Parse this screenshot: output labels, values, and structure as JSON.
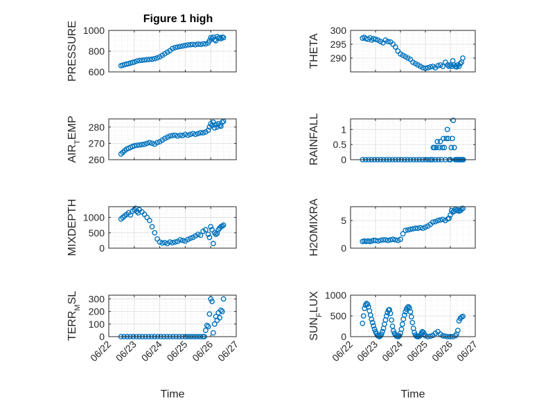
{
  "figure_title": "Figure 1 high",
  "marker_color": "#0072BD",
  "xlabel": "Time",
  "x_tick_labels": [
    "06/22",
    "06/23",
    "06/24",
    "06/25",
    "06/26",
    "06/27"
  ],
  "chart_data": [
    {
      "type": "scatter",
      "title": "Figure 1 high",
      "ylabel": "PRESSURE",
      "xlabel": "",
      "ylim": [
        600,
        1000
      ],
      "yticks": [
        600,
        800,
        1000
      ],
      "xlim": [
        0,
        5
      ],
      "grid": "on, with minor grid",
      "series": [
        {
          "name": "",
          "x": [
            0.48,
            0.55,
            0.62,
            0.7,
            0.78,
            0.85,
            0.92,
            1.0,
            1.1,
            1.2,
            1.3,
            1.4,
            1.5,
            1.6,
            1.7,
            1.8,
            1.9,
            2.0,
            2.1,
            2.2,
            2.3,
            2.4,
            2.5,
            2.6,
            2.7,
            2.8,
            2.9,
            3.0,
            3.1,
            3.2,
            3.3,
            3.4,
            3.5,
            3.6,
            3.7,
            3.8,
            3.9,
            3.95,
            4.0,
            4.05,
            4.1,
            4.15,
            4.2,
            4.25,
            4.3,
            4.35,
            4.4,
            4.45,
            4.5
          ],
          "y": [
            660,
            665,
            670,
            675,
            680,
            685,
            690,
            695,
            705,
            710,
            712,
            715,
            718,
            720,
            722,
            728,
            735,
            745,
            760,
            775,
            790,
            805,
            825,
            835,
            840,
            845,
            850,
            855,
            860,
            862,
            865,
            862,
            868,
            865,
            870,
            870,
            880,
            900,
            930,
            920,
            935,
            910,
            900,
            940,
            925,
            930,
            920,
            935,
            930
          ]
        }
      ]
    },
    {
      "type": "scatter",
      "ylabel": "THETA",
      "xlabel": "",
      "ylim": [
        285,
        300
      ],
      "yticks": [
        290,
        295,
        300
      ],
      "xlim": [
        0,
        5
      ],
      "grid": "on, with minor grid",
      "series": [
        {
          "name": "",
          "x": [
            0.48,
            0.55,
            0.62,
            0.7,
            0.78,
            0.85,
            0.92,
            1.0,
            1.1,
            1.2,
            1.3,
            1.4,
            1.5,
            1.6,
            1.7,
            1.8,
            1.9,
            2.0,
            2.1,
            2.2,
            2.3,
            2.4,
            2.5,
            2.6,
            2.7,
            2.8,
            2.9,
            3.0,
            3.1,
            3.2,
            3.3,
            3.4,
            3.5,
            3.6,
            3.7,
            3.8,
            3.9,
            3.95,
            4.0,
            4.05,
            4.1,
            4.15,
            4.2,
            4.25,
            4.3,
            4.35,
            4.4,
            4.45,
            4.5
          ],
          "y": [
            297.2,
            297.5,
            297.0,
            296.8,
            297.3,
            296.5,
            297.0,
            296.8,
            296.5,
            296.0,
            295.5,
            296.5,
            296.0,
            295.8,
            295.0,
            294.0,
            292.5,
            291.5,
            291.0,
            290.5,
            290.0,
            289.5,
            288.5,
            288.0,
            287.5,
            287.0,
            286.5,
            286.3,
            286.5,
            286.8,
            287.0,
            286.5,
            287.2,
            287.5,
            287.0,
            288.5,
            287.5,
            287.0,
            287.5,
            287.0,
            289.0,
            287.5,
            287.0,
            286.8,
            287.5,
            287.0,
            288.0,
            288.5,
            290.0
          ]
        }
      ]
    },
    {
      "type": "scatter",
      "ylabel": "AIR_TEMP",
      "xlabel": "",
      "ylim": [
        260,
        285
      ],
      "yticks": [
        260,
        270,
        280
      ],
      "xlim": [
        0,
        5
      ],
      "grid": "on, with minor grid",
      "series": [
        {
          "name": "",
          "x": [
            0.48,
            0.55,
            0.62,
            0.7,
            0.78,
            0.85,
            0.92,
            1.0,
            1.1,
            1.2,
            1.3,
            1.4,
            1.5,
            1.6,
            1.7,
            1.8,
            1.9,
            2.0,
            2.1,
            2.2,
            2.3,
            2.4,
            2.5,
            2.6,
            2.7,
            2.8,
            2.9,
            3.0,
            3.1,
            3.2,
            3.3,
            3.4,
            3.5,
            3.6,
            3.7,
            3.8,
            3.9,
            3.95,
            4.0,
            4.05,
            4.1,
            4.15,
            4.2,
            4.25,
            4.3,
            4.35,
            4.4,
            4.45,
            4.5
          ],
          "y": [
            263.5,
            264.5,
            265.5,
            266.5,
            267.0,
            267.5,
            268.0,
            268.5,
            268.8,
            269.0,
            269.2,
            269.5,
            270.0,
            270.5,
            270.0,
            269.5,
            270.5,
            271.0,
            272.0,
            273.0,
            273.8,
            274.5,
            274.8,
            275.0,
            274.5,
            275.0,
            274.8,
            275.5,
            275.0,
            275.5,
            276.0,
            275.5,
            276.0,
            276.5,
            276.5,
            277.0,
            278.0,
            280.0,
            282.0,
            281.0,
            283.0,
            279.5,
            281.5,
            280.0,
            282.0,
            281.0,
            280.5,
            283.0,
            283.5
          ]
        }
      ]
    },
    {
      "type": "scatter",
      "ylabel": "RAINFALL",
      "xlabel": "",
      "ylim": [
        0,
        1.35
      ],
      "yticks": [
        0,
        0.5,
        1
      ],
      "xlim": [
        0,
        5
      ],
      "grid": "on, with minor grid",
      "series": [
        {
          "name": "",
          "x": [
            0.48,
            0.6,
            0.72,
            0.84,
            0.96,
            1.08,
            1.2,
            1.32,
            1.44,
            1.56,
            1.68,
            1.8,
            1.92,
            2.04,
            2.16,
            2.28,
            2.4,
            2.52,
            2.64,
            2.76,
            2.88,
            3.0,
            3.1,
            3.2,
            3.28,
            3.32,
            3.36,
            3.4,
            3.44,
            3.48,
            3.52,
            3.56,
            3.6,
            3.64,
            3.68,
            3.72,
            3.76,
            3.8,
            3.84,
            3.88,
            3.92,
            3.96,
            4.0,
            4.04,
            4.08,
            4.12,
            4.16,
            4.2,
            4.24,
            4.28,
            4.32,
            4.36,
            4.4,
            4.44,
            4.48,
            4.52
          ],
          "y": [
            0,
            0,
            0,
            0,
            0,
            0,
            0,
            0,
            0,
            0,
            0,
            0,
            0,
            0,
            0,
            0,
            0,
            0,
            0,
            0,
            0,
            0,
            0,
            0,
            0,
            0.4,
            0.4,
            0,
            0.4,
            0.6,
            0,
            0.4,
            0.6,
            0,
            0.4,
            0.7,
            0.4,
            0,
            0.7,
            1.0,
            0.7,
            0,
            0,
            0.4,
            0.7,
            1.3,
            0.4,
            0,
            0,
            0,
            0,
            0,
            0,
            0,
            0,
            0
          ]
        }
      ]
    },
    {
      "type": "scatter",
      "ylabel": "MIXDEPTH",
      "xlabel": "",
      "ylim": [
        0,
        1350
      ],
      "yticks": [
        0,
        500,
        1000
      ],
      "xlim": [
        0,
        5
      ],
      "grid": "on, with minor grid",
      "series": [
        {
          "name": "",
          "x": [
            0.48,
            0.55,
            0.62,
            0.7,
            0.78,
            0.85,
            0.92,
            1.0,
            1.05,
            1.1,
            1.15,
            1.2,
            1.3,
            1.4,
            1.5,
            1.6,
            1.7,
            1.8,
            1.9,
            2.0,
            2.1,
            2.2,
            2.3,
            2.4,
            2.5,
            2.6,
            2.7,
            2.8,
            2.9,
            3.0,
            3.1,
            3.2,
            3.3,
            3.4,
            3.5,
            3.6,
            3.7,
            3.8,
            3.9,
            3.95,
            4.0,
            4.05,
            4.1,
            4.15,
            4.2,
            4.25,
            4.3,
            4.35,
            4.4,
            4.45,
            4.5
          ],
          "y": [
            950,
            1000,
            1050,
            1100,
            1150,
            1080,
            1200,
            1250,
            1300,
            1200,
            1150,
            1250,
            1180,
            1100,
            1000,
            900,
            700,
            500,
            300,
            200,
            170,
            180,
            150,
            200,
            180,
            200,
            220,
            270,
            250,
            230,
            280,
            320,
            350,
            400,
            450,
            420,
            550,
            600,
            450,
            350,
            700,
            600,
            150,
            500,
            450,
            480,
            600,
            650,
            700,
            720,
            750
          ]
        }
      ]
    },
    {
      "type": "scatter",
      "ylabel": "H2OMIXRA",
      "xlabel": "",
      "ylim": [
        0,
        7.5
      ],
      "yticks": [
        0,
        5
      ],
      "xlim": [
        0,
        5
      ],
      "grid": "on, with minor grid",
      "series": [
        {
          "name": "",
          "x": [
            0.48,
            0.55,
            0.62,
            0.7,
            0.78,
            0.85,
            0.92,
            1.0,
            1.1,
            1.2,
            1.3,
            1.4,
            1.5,
            1.6,
            1.7,
            1.8,
            1.9,
            2.0,
            2.1,
            2.2,
            2.3,
            2.4,
            2.5,
            2.6,
            2.7,
            2.8,
            2.9,
            3.0,
            3.1,
            3.2,
            3.3,
            3.4,
            3.5,
            3.6,
            3.7,
            3.8,
            3.9,
            3.95,
            4.0,
            4.05,
            4.1,
            4.15,
            4.2,
            4.25,
            4.3,
            4.35,
            4.4,
            4.45,
            4.5
          ],
          "y": [
            1.2,
            1.3,
            1.2,
            1.3,
            1.2,
            1.3,
            1.4,
            1.4,
            1.3,
            1.4,
            1.5,
            1.5,
            1.4,
            1.5,
            1.6,
            1.5,
            1.4,
            1.6,
            2.6,
            3.2,
            3.3,
            3.4,
            3.5,
            3.6,
            3.6,
            3.7,
            3.6,
            3.8,
            4.0,
            4.3,
            4.7,
            4.8,
            5.0,
            5.1,
            5.2,
            5.0,
            5.3,
            5.4,
            6.0,
            6.8,
            6.5,
            6.7,
            7.0,
            6.8,
            6.9,
            6.7,
            6.8,
            7.0,
            7.2
          ]
        }
      ]
    },
    {
      "type": "scatter",
      "ylabel": "TERR_MSL",
      "xlabel": "Time",
      "ylim": [
        0,
        330
      ],
      "yticks": [
        0,
        100,
        200,
        300
      ],
      "xlim": [
        0,
        5
      ],
      "grid": "on, with minor grid",
      "series": [
        {
          "name": "",
          "x": [
            0.48,
            0.6,
            0.72,
            0.84,
            0.96,
            1.08,
            1.2,
            1.32,
            1.44,
            1.56,
            1.68,
            1.8,
            1.92,
            2.04,
            2.16,
            2.28,
            2.4,
            2.52,
            2.64,
            2.76,
            2.88,
            3.0,
            3.1,
            3.2,
            3.3,
            3.4,
            3.5,
            3.6,
            3.7,
            3.75,
            3.8,
            3.85,
            3.9,
            3.95,
            4.0,
            4.05,
            4.1,
            4.15,
            4.2,
            4.25,
            4.3,
            4.35,
            4.4,
            4.45,
            4.5
          ],
          "y": [
            0,
            0,
            0,
            0,
            0,
            0,
            0,
            0,
            0,
            0,
            0,
            0,
            0,
            0,
            0,
            0,
            0,
            0,
            0,
            0,
            0,
            0,
            0,
            0,
            0,
            0,
            0,
            0,
            0,
            0,
            50,
            90,
            80,
            180,
            300,
            280,
            30,
            100,
            160,
            130,
            190,
            150,
            210,
            200,
            300
          ]
        }
      ]
    },
    {
      "type": "scatter",
      "ylabel": "SUN_FLUX",
      "xlabel": "Time",
      "ylim": [
        0,
        1000
      ],
      "yticks": [
        0,
        500,
        1000
      ],
      "xlim": [
        0,
        5
      ],
      "grid": "on, with minor grid",
      "series": [
        {
          "name": "",
          "x": [
            0.48,
            0.52,
            0.56,
            0.6,
            0.64,
            0.68,
            0.72,
            0.76,
            0.8,
            0.84,
            0.88,
            0.92,
            0.96,
            1.0,
            1.04,
            1.08,
            1.12,
            1.16,
            1.2,
            1.24,
            1.28,
            1.32,
            1.36,
            1.4,
            1.44,
            1.48,
            1.52,
            1.56,
            1.6,
            1.64,
            1.68,
            1.72,
            1.76,
            1.8,
            1.84,
            1.88,
            1.92,
            1.96,
            2.0,
            2.04,
            2.08,
            2.12,
            2.16,
            2.2,
            2.24,
            2.28,
            2.32,
            2.36,
            2.4,
            2.44,
            2.48,
            2.52,
            2.56,
            2.6,
            2.64,
            2.68,
            2.72,
            2.76,
            2.8,
            2.84,
            2.88,
            2.92,
            2.96,
            3.0,
            3.1,
            3.2,
            3.3,
            3.4,
            3.5,
            3.6,
            3.7,
            3.8,
            3.9,
            4.0,
            4.1,
            4.2,
            4.25,
            4.3,
            4.35,
            4.4,
            4.45,
            4.5
          ],
          "y": [
            320,
            500,
            680,
            760,
            800,
            780,
            720,
            620,
            520,
            420,
            340,
            260,
            180,
            120,
            70,
            30,
            10,
            0,
            20,
            60,
            120,
            200,
            300,
            400,
            500,
            580,
            640,
            650,
            560,
            400,
            250,
            140,
            80,
            40,
            15,
            5,
            0,
            20,
            80,
            180,
            300,
            420,
            520,
            600,
            660,
            700,
            720,
            690,
            600,
            480,
            340,
            200,
            100,
            40,
            10,
            0,
            0,
            10,
            40,
            80,
            120,
            100,
            60,
            20,
            0,
            10,
            30,
            80,
            120,
            60,
            20,
            10,
            0,
            0,
            0,
            20,
            60,
            150,
            380,
            440,
            470,
            490
          ]
        }
      ]
    }
  ]
}
